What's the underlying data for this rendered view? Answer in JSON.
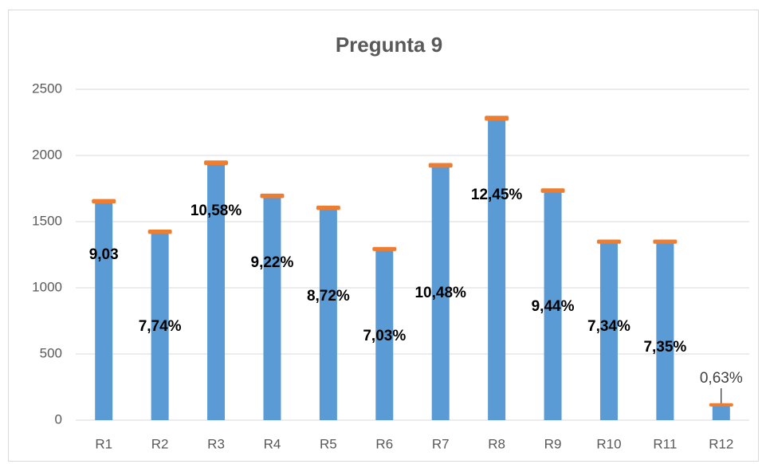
{
  "chart_data": {
    "type": "bar",
    "title": "Pregunta 9",
    "categories": [
      "R1",
      "R2",
      "R3",
      "R4",
      "R5",
      "R6",
      "R7",
      "R8",
      "R9",
      "R10",
      "R11",
      "R12"
    ],
    "stacked": true,
    "series": [
      {
        "color": "#5b9bd5",
        "values": [
          1650,
          1420,
          1940,
          1690,
          1600,
          1290,
          1920,
          2275,
          1730,
          1345,
          1345,
          115
        ]
      },
      {
        "color": "#ed7d31",
        "values": [
          9.03,
          7.74,
          10.58,
          9.22,
          8.72,
          7.03,
          10.48,
          12.45,
          9.44,
          7.34,
          7.35,
          0.63
        ],
        "value_labels": [
          "9,03",
          "7,74%",
          "10,58%",
          "9,22%",
          "8,72%",
          "7,03%",
          "10,48%",
          "12,45%",
          "9,44%",
          "7,34%",
          "7,35%",
          "0,63%"
        ]
      }
    ],
    "ylim": [
      0,
      2500
    ],
    "yticks": [
      0,
      500,
      1000,
      1500,
      2000,
      2500
    ],
    "grid": true
  }
}
